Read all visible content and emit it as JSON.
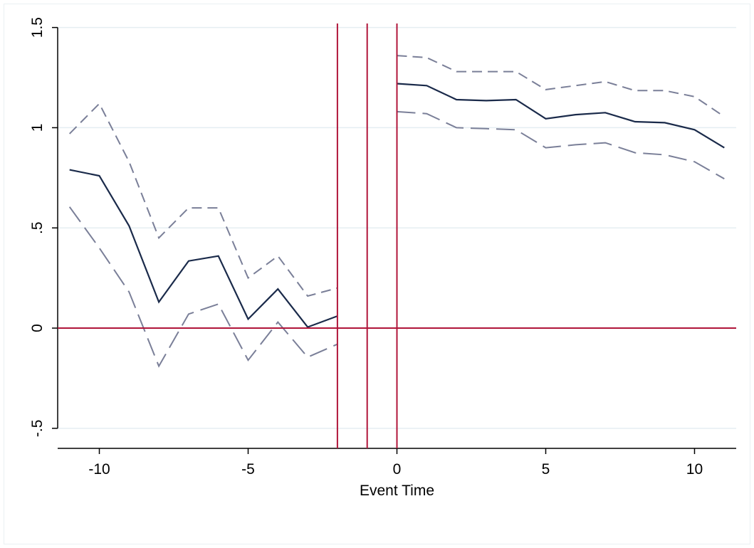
{
  "chart_data": {
    "type": "line",
    "title": "",
    "xlabel": "Event Time",
    "ylabel": "",
    "xlim": [
      -11.4,
      11.4
    ],
    "ylim": [
      -0.6,
      1.52
    ],
    "x_ticks": [
      -10,
      -5,
      0,
      5,
      10
    ],
    "x_tick_labels": [
      "-10",
      "-5",
      "0",
      "5",
      "10"
    ],
    "y_ticks": [
      -0.5,
      0,
      0.5,
      1,
      1.5
    ],
    "y_tick_labels": [
      "-.5",
      "0",
      ".5",
      "1",
      "1.5"
    ],
    "grid": "horizontal",
    "legend": "none",
    "reference_lines": {
      "vertical_x": [
        -2,
        -1,
        0
      ],
      "horizontal_y": [
        0
      ]
    },
    "segments": [
      {
        "x": [
          -11,
          -10,
          -9,
          -8,
          -7,
          -6,
          -5,
          -4,
          -3,
          -2
        ],
        "estimate": [
          0.79,
          0.76,
          0.51,
          0.13,
          0.335,
          0.36,
          0.045,
          0.195,
          0.005,
          0.06
        ],
        "upper": [
          0.97,
          1.12,
          0.83,
          0.45,
          0.6,
          0.6,
          0.25,
          0.36,
          0.16,
          0.2
        ],
        "lower": [
          0.605,
          0.4,
          0.18,
          -0.19,
          0.07,
          0.12,
          -0.16,
          0.03,
          -0.145,
          -0.08
        ]
      },
      {
        "x": [
          0,
          1,
          2,
          3,
          4,
          5,
          6,
          7,
          8,
          9,
          10,
          11
        ],
        "estimate": [
          1.22,
          1.21,
          1.14,
          1.135,
          1.14,
          1.045,
          1.065,
          1.075,
          1.03,
          1.025,
          0.99,
          0.9
        ],
        "upper": [
          1.36,
          1.35,
          1.28,
          1.28,
          1.28,
          1.19,
          1.21,
          1.23,
          1.185,
          1.185,
          1.155,
          1.055
        ],
        "lower": [
          1.08,
          1.07,
          1.0,
          0.995,
          0.99,
          0.9,
          0.915,
          0.925,
          0.875,
          0.865,
          0.83,
          0.745
        ]
      }
    ],
    "colors": {
      "estimate": "#1a2a4a",
      "ci": "#7a7f98",
      "reference": "#b0153a",
      "grid": "#e5eef2",
      "axis": "#000000"
    }
  }
}
